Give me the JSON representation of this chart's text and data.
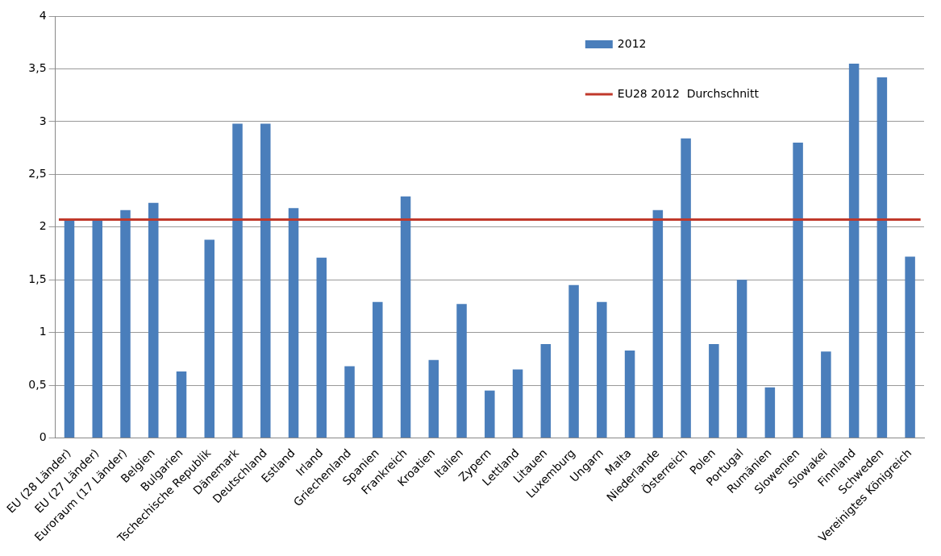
{
  "chart_data": {
    "type": "bar",
    "categories": [
      "EU (28 Länder)",
      "EU (27 Länder)",
      "Euroraum (17 Länder)",
      "Belgien",
      "Bulgarien",
      "Tschechische Republik",
      "Dänemark",
      "Deutschland",
      "Estland",
      "Irland",
      "Griechenland",
      "Spanien",
      "Frankreich",
      "Kroatien",
      "Italien",
      "Zypern",
      "Lettland",
      "Litauen",
      "Luxemburg",
      "Ungarn",
      "Malta",
      "Niederlande",
      "Österreich",
      "Polen",
      "Portugal",
      "Rumänien",
      "Slowenien",
      "Slowakei",
      "Finnland",
      "Schweden",
      "Vereinigtes Königreich"
    ],
    "series": [
      {
        "name": "2012",
        "color": "#4a7ebb",
        "values": [
          2.06,
          2.06,
          2.16,
          2.23,
          0.63,
          1.88,
          2.98,
          2.98,
          2.18,
          1.71,
          0.68,
          1.29,
          2.29,
          0.74,
          1.27,
          0.45,
          0.65,
          0.89,
          1.45,
          1.29,
          0.83,
          2.16,
          2.84,
          0.89,
          1.5,
          0.48,
          2.8,
          0.82,
          3.55,
          3.42,
          1.72
        ]
      }
    ],
    "ref_lines": [
      {
        "axis": "y",
        "value": 2.07,
        "label": "EU28 2012  Durchschnitt",
        "color": "#c0392b"
      }
    ],
    "ylim": [
      0,
      4
    ],
    "yticks": [
      0,
      {
        "value": 0.5,
        "label": "0,5"
      },
      1,
      {
        "value": 1.5,
        "label": "1,5"
      },
      2,
      {
        "value": 2.5,
        "label": "2,5"
      },
      3,
      {
        "value": 3.5,
        "label": "3,5"
      },
      4
    ],
    "grid": "y",
    "legend": "top right"
  }
}
